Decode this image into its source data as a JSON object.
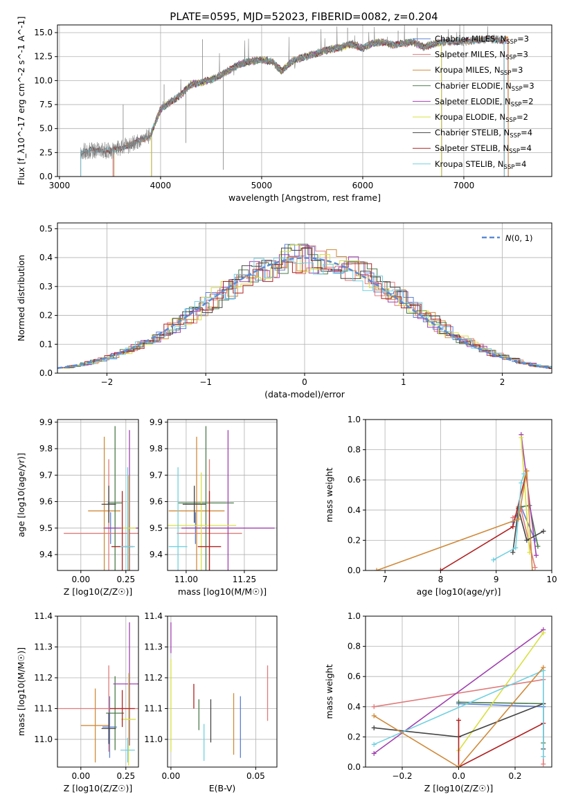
{
  "figure": {
    "title": "PLATE=0595, MJD=52023, FIBERID=0082, z=0.204"
  },
  "chart_data": [
    {
      "type": "line",
      "name": "spectrum",
      "xlabel": "wavelength [Angstrom, rest frame]",
      "ylabel": "Flux [f_λ10^-17 erg cm^-2 s^-1 A^-1]",
      "xlim": [
        2980,
        7870
      ],
      "ylim": [
        0,
        15.8
      ],
      "xticks": [
        3000,
        4000,
        5000,
        6000,
        7000
      ],
      "yticks": [
        0.0,
        2.5,
        5.0,
        7.5,
        10.0,
        12.5,
        15.0
      ],
      "grid": true,
      "legend_position": "right",
      "series": [
        {
          "name": "Chabrier MILES, N_SSP=3",
          "color": "#5b7fd6",
          "range": [
            3530,
            7440
          ]
        },
        {
          "name": "Salpeter MILES, N_SSP=3",
          "color": "#e07a7a",
          "range": [
            3530,
            7440
          ]
        },
        {
          "name": "Kroupa MILES, N_SSP=3",
          "color": "#d08a3a",
          "range": [
            3540,
            7440
          ]
        },
        {
          "name": "Chabrier ELODIE, N_SSP=3",
          "color": "#4a7a4a",
          "range": [
            3910,
            6780
          ]
        },
        {
          "name": "Salpeter ELODIE, N_SSP=2",
          "color": "#a040b0",
          "range": [
            3910,
            6780
          ]
        },
        {
          "name": "Kroupa ELODIE, N_SSP=2",
          "color": "#d8e040",
          "range": [
            3910,
            6780
          ]
        },
        {
          "name": "Chabrier STELIB, N_SSP=4",
          "color": "#444444",
          "range": [
            3210,
            7400
          ]
        },
        {
          "name": "Salpeter STELIB, N_SSP=4",
          "color": "#b02020",
          "range": [
            3210,
            7400
          ]
        },
        {
          "name": "Kroupa STELIB, N_SSP=4",
          "color": "#70d0e0",
          "range": [
            3210,
            7400
          ]
        }
      ],
      "data": {
        "color": "#808080",
        "x": [
          3210,
          3300,
          3400,
          3500,
          3600,
          3700,
          3800,
          3900,
          4000,
          4100,
          4200,
          4300,
          4400,
          4500,
          4600,
          4700,
          4800,
          4900,
          5000,
          5100,
          5200,
          5300,
          5400,
          5500,
          5600,
          5700,
          5800,
          5900,
          6000,
          6100,
          6200,
          6300,
          6400,
          6500,
          6600,
          6700,
          6800,
          6900,
          7000,
          7100,
          7200,
          7300,
          7400
        ],
        "y": [
          2.6,
          2.7,
          2.8,
          2.6,
          3.0,
          3.3,
          3.8,
          4.3,
          7.0,
          7.8,
          8.5,
          9.6,
          9.8,
          10.1,
          10.6,
          11.2,
          11.8,
          12.0,
          12.2,
          12.0,
          11.0,
          12.0,
          12.4,
          12.7,
          13.0,
          13.3,
          13.5,
          13.8,
          13.4,
          13.9,
          14.0,
          13.7,
          13.9,
          14.0,
          13.5,
          13.8,
          14.0,
          14.1,
          14.0,
          14.2,
          14.3,
          14.3,
          14.2
        ],
        "spikes": [
          [
            3630,
            7.5
          ],
          [
            4035,
            9.6
          ],
          [
            4250,
            3.5
          ],
          [
            4620,
            0.7
          ],
          [
            4415,
            14.3
          ],
          [
            5850,
            15.5
          ],
          [
            6350,
            15.2
          ],
          [
            6540,
            15.5
          ]
        ]
      }
    },
    {
      "type": "histogram",
      "name": "residuals",
      "xlabel": "(data-model)/error",
      "ylabel": "Normed distribution",
      "xlim": [
        -2.5,
        2.5
      ],
      "ylim": [
        0,
        0.52
      ],
      "xticks": [
        -2,
        -1,
        0,
        1,
        2
      ],
      "yticks": [
        0.0,
        0.1,
        0.2,
        0.3,
        0.4,
        0.5
      ],
      "grid": true,
      "legend": [
        {
          "label": "N(0,1)",
          "style": "dashed",
          "color": "#5b8ad6"
        }
      ],
      "legend_position": "upper right",
      "bin_width": 0.1
    },
    {
      "type": "errorbar",
      "name": "age-vs-Z",
      "xlabel": "Z [log10(Z/Z☉)]",
      "ylabel": "age [log10(age/yr)]",
      "xlim": [
        -0.13,
        0.32
      ],
      "ylim": [
        9.34,
        9.91
      ],
      "xticks": [
        0.0,
        0.25
      ],
      "yticks": [
        9.4,
        9.5,
        9.6,
        9.7,
        9.8,
        9.9
      ],
      "grid": true,
      "points": [
        {
          "color": "#5b7fd6",
          "x": 0.165,
          "xerr": 0.04,
          "y": 9.5,
          "yerr": 0.06
        },
        {
          "color": "#e07a7a",
          "x": 0.155,
          "xerr": 0.25,
          "y": 9.48,
          "yerr": 0.28
        },
        {
          "color": "#d08a3a",
          "x": 0.13,
          "xerr": 0.09,
          "y": 9.565,
          "yerr": 0.28
        },
        {
          "color": "#4a7a4a",
          "x": 0.19,
          "xerr": 0.04,
          "y": 9.595,
          "yerr": 0.29
        },
        {
          "color": "#a040b0",
          "x": 0.27,
          "xerr": 0.14,
          "y": 9.5,
          "yerr": 0.37
        },
        {
          "color": "#d8e040",
          "x": 0.265,
          "xerr": 0.04,
          "y": 9.5,
          "yerr": 0.2
        },
        {
          "color": "#444444",
          "x": 0.155,
          "xerr": 0.04,
          "y": 9.59,
          "yerr": 0.07
        },
        {
          "color": "#b02020",
          "x": 0.23,
          "xerr": 0.06,
          "y": 9.43,
          "yerr": 0.21
        },
        {
          "color": "#70d0e0",
          "x": 0.26,
          "xerr": 0.04,
          "y": 9.43,
          "yerr": 0.3
        }
      ]
    },
    {
      "type": "errorbar",
      "name": "age-vs-mass",
      "xlabel": "mass [log10(M/M☉)]",
      "ylabel": "",
      "xlim": [
        10.92,
        11.39
      ],
      "ylim": [
        9.34,
        9.91
      ],
      "xticks": [
        11.0,
        11.25
      ],
      "yticks": [
        9.4,
        9.5,
        9.6,
        9.7,
        9.8,
        9.9
      ],
      "grid": true,
      "points": [
        {
          "color": "#5b7fd6",
          "x": 11.04,
          "xerr": 0.04,
          "y": 9.5,
          "yerr": 0.06
        },
        {
          "color": "#e07a7a",
          "x": 11.1,
          "xerr": 0.14,
          "y": 9.48,
          "yerr": 0.28
        },
        {
          "color": "#d08a3a",
          "x": 11.045,
          "xerr": 0.12,
          "y": 9.565,
          "yerr": 0.28
        },
        {
          "color": "#4a7a4a",
          "x": 11.085,
          "xerr": 0.12,
          "y": 9.595,
          "yerr": 0.29
        },
        {
          "color": "#a040b0",
          "x": 11.18,
          "xerr": 0.2,
          "y": 9.5,
          "yerr": 0.37
        },
        {
          "color": "#d8e040",
          "x": 11.065,
          "xerr": 0.15,
          "y": 9.51,
          "yerr": 0.2
        },
        {
          "color": "#444444",
          "x": 11.035,
          "xerr": 0.05,
          "y": 9.59,
          "yerr": 0.07
        },
        {
          "color": "#b02020",
          "x": 11.1,
          "xerr": 0.05,
          "y": 9.43,
          "yerr": 0.21
        },
        {
          "color": "#70d0e0",
          "x": 10.965,
          "xerr": 0.04,
          "y": 9.43,
          "yerr": 0.3
        }
      ]
    },
    {
      "type": "line",
      "name": "weight-vs-age",
      "xlabel": "age [log10(age/yr)]",
      "ylabel": "mass weight",
      "xlim": [
        6.65,
        10
      ],
      "ylim": [
        0,
        1
      ],
      "xticks": [
        7,
        8,
        9,
        10
      ],
      "yticks": [
        0.0,
        0.2,
        0.4,
        0.6,
        0.8,
        1.0
      ],
      "grid": true,
      "series": [
        {
          "color": "#5b7fd6",
          "x": [
            9.3,
            9.45,
            9.7
          ],
          "y": [
            0.32,
            0.42,
            0.2
          ]
        },
        {
          "color": "#e07a7a",
          "x": [
            9.3,
            9.45,
            9.7
          ],
          "y": [
            0.35,
            0.4,
            0.02
          ]
        },
        {
          "color": "#4a7a4a",
          "x": [
            9.4,
            9.6,
            9.75
          ],
          "y": [
            0.42,
            0.43,
            0.16
          ]
        },
        {
          "color": "#a040b0",
          "x": [
            9.45,
            9.72
          ],
          "y": [
            0.9,
            0.1
          ]
        },
        {
          "color": "#d8e040",
          "x": [
            9.45,
            9.6
          ],
          "y": [
            0.88,
            0.12
          ]
        },
        {
          "color": "#444444",
          "x": [
            9.3,
            9.4,
            9.55,
            9.85
          ],
          "y": [
            0.12,
            0.41,
            0.2,
            0.26
          ]
        },
        {
          "color": "#b02020",
          "x": [
            8.0,
            9.3,
            9.55
          ],
          "y": [
            0.0,
            0.29,
            0.66
          ]
        },
        {
          "color": "#70d0e0",
          "x": [
            8.95,
            9.35,
            9.45,
            9.5
          ],
          "y": [
            0.07,
            0.15,
            0.58,
            0.64
          ]
        },
        {
          "color": "#d08a3a",
          "x": [
            6.85,
            9.4,
            9.55,
            9.65
          ],
          "y": [
            0.0,
            0.34,
            0.66,
            0.0
          ]
        }
      ]
    },
    {
      "type": "errorbar",
      "name": "mass-vs-Z",
      "xlabel": "Z [log10(Z/Z☉)]",
      "ylabel": "mass [log10(M/M☉)]",
      "xlim": [
        -0.13,
        0.32
      ],
      "ylim": [
        10.91,
        11.4
      ],
      "xticks": [
        0.0,
        0.25
      ],
      "yticks": [
        11.0,
        11.1,
        11.2,
        11.3,
        11.4
      ],
      "grid": true,
      "points": [
        {
          "color": "#5b7fd6",
          "x": 0.16,
          "xerr": 0.04,
          "y": 11.04,
          "yerr": 0.1
        },
        {
          "color": "#e07a7a",
          "x": 0.155,
          "xerr": 0.28,
          "y": 11.1,
          "yerr": 0.14
        },
        {
          "color": "#d08a3a",
          "x": 0.08,
          "xerr": 0.08,
          "y": 11.045,
          "yerr": 0.12
        },
        {
          "color": "#4a7a4a",
          "x": 0.19,
          "xerr": 0.05,
          "y": 11.085,
          "yerr": 0.12
        },
        {
          "color": "#a040b0",
          "x": 0.27,
          "xerr": 0.09,
          "y": 11.18,
          "yerr": 0.2
        },
        {
          "color": "#d8e040",
          "x": 0.265,
          "xerr": 0.04,
          "y": 11.065,
          "yerr": 0.15
        },
        {
          "color": "#444444",
          "x": 0.155,
          "xerr": 0.04,
          "y": 11.035,
          "yerr": 0.05
        },
        {
          "color": "#b02020",
          "x": 0.23,
          "xerr": 0.07,
          "y": 11.1,
          "yerr": 0.06
        },
        {
          "color": "#70d0e0",
          "x": 0.26,
          "xerr": 0.04,
          "y": 10.965,
          "yerr": 0.04
        }
      ]
    },
    {
      "type": "errorbar",
      "name": "mass-vs-EBV",
      "xlabel": "E(B-V)",
      "ylabel": "",
      "xlim": [
        -0.002,
        0.0625
      ],
      "ylim": [
        10.91,
        11.4
      ],
      "xticks": [
        0.0,
        0.05
      ],
      "yticks": [
        11.0,
        11.1,
        11.2,
        11.3,
        11.4
      ],
      "grid": true,
      "points": [
        {
          "color": "#5b7fd6",
          "x": 0.041,
          "y": 11.04,
          "yerr": 0.1
        },
        {
          "color": "#e07a7a",
          "x": 0.057,
          "y": 11.15,
          "yerr": 0.09
        },
        {
          "color": "#d08a3a",
          "x": 0.037,
          "y": 11.05,
          "yerr": 0.1
        },
        {
          "color": "#4a7a4a",
          "x": 0.0165,
          "y": 11.08,
          "yerr": 0.05
        },
        {
          "color": "#a040b0",
          "x": 0.0,
          "y": 11.33,
          "yerr": 0.05
        },
        {
          "color": "#d8e040",
          "x": 0.0,
          "y": 11.11,
          "yerr": 0.15
        },
        {
          "color": "#444444",
          "x": 0.0235,
          "y": 11.06,
          "yerr": 0.07
        },
        {
          "color": "#b02020",
          "x": 0.0135,
          "y": 11.14,
          "yerr": 0.04
        },
        {
          "color": "#70d0e0",
          "x": 0.0195,
          "y": 10.99,
          "yerr": 0.06
        }
      ]
    },
    {
      "type": "line",
      "name": "weight-vs-Z",
      "xlabel": "Z [log10(Z/Z☉)]",
      "ylabel": "mass weight",
      "xlim": [
        -0.33,
        0.33
      ],
      "ylim": [
        0,
        1
      ],
      "xticks": [
        -0.2,
        0.0,
        0.2
      ],
      "yticks": [
        0.0,
        0.2,
        0.4,
        0.6,
        0.8,
        1.0
      ],
      "grid": true,
      "series": [
        {
          "color": "#5b7fd6",
          "x": [
            0.0,
            0.3
          ],
          "y": [
            0.42,
            0.4
          ]
        },
        {
          "color": "#e07a7a",
          "x": [
            -0.3,
            0.3,
            0.3
          ],
          "y": [
            0.4,
            0.58,
            0.02
          ]
        },
        {
          "color": "#4a7a4a",
          "x": [
            0.0,
            0.3,
            0.3
          ],
          "y": [
            0.43,
            0.42,
            0.16
          ]
        },
        {
          "color": "#a040b0",
          "x": [
            -0.3,
            0.3
          ],
          "y": [
            0.09,
            0.91
          ]
        },
        {
          "color": "#d8e040",
          "x": [
            0.0,
            0.3
          ],
          "y": [
            0.11,
            0.89
          ]
        },
        {
          "color": "#444444",
          "x": [
            -0.3,
            0.0,
            0.3,
            0.3
          ],
          "y": [
            0.26,
            0.2,
            0.42,
            0.12
          ]
        },
        {
          "color": "#b02020",
          "x": [
            0.0,
            0.0,
            0.3
          ],
          "y": [
            0.31,
            0.0,
            0.29
          ]
        },
        {
          "color": "#70d0e0",
          "x": [
            -0.3,
            0.3,
            0.3
          ],
          "y": [
            0.15,
            0.64,
            0.07
          ]
        },
        {
          "color": "#d08a3a",
          "x": [
            -0.3,
            0.0,
            0.3
          ],
          "y": [
            0.34,
            0.0,
            0.66
          ]
        }
      ]
    }
  ]
}
